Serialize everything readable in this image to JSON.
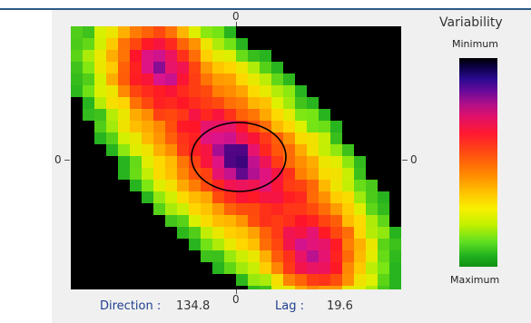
{
  "axes": {
    "top_tick": "0",
    "bottom_tick": "0",
    "left_tick": "0",
    "right_tick": "0"
  },
  "legend": {
    "title": "Variability",
    "min_label": "Minimum",
    "max_label": "Maximum"
  },
  "status": {
    "direction_label": "Direction :",
    "direction_value": "134.8",
    "lag_label": "Lag :",
    "lag_value": "19.6"
  },
  "colors": {
    "frame_rule": "#2c5a86",
    "panel_bg": "#f0f0f0",
    "status_label": "#1f3f8f",
    "selection_ellipse": "#000000"
  }
}
